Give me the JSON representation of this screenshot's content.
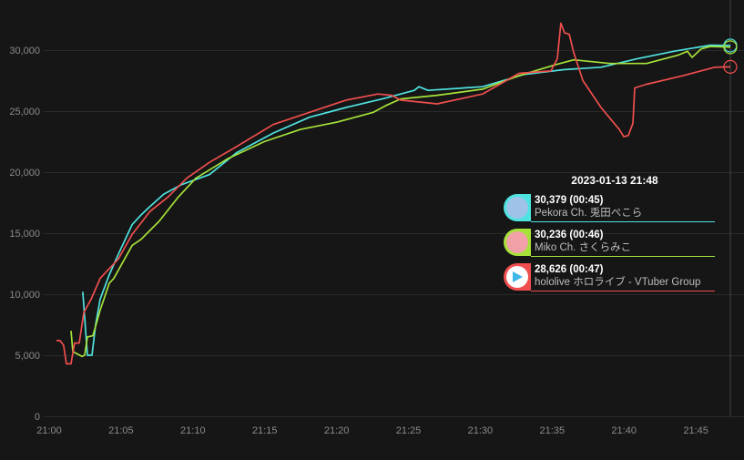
{
  "chart_data": {
    "type": "line",
    "title": "",
    "xlabel": "",
    "ylabel": "",
    "x_unit": "minutes after 21:00",
    "xlim": [
      0,
      48
    ],
    "ylim": [
      0,
      30000
    ],
    "grid": true,
    "y_ticks": [
      0,
      5000,
      10000,
      15000,
      20000,
      25000,
      30000
    ],
    "y_tick_labels": [
      "0",
      "5,000",
      "10,000",
      "15,000",
      "20,000",
      "25,000",
      "30,000"
    ],
    "x_ticks": [
      0,
      5,
      10,
      15,
      20,
      25,
      30,
      35,
      40,
      45
    ],
    "x_tick_labels": [
      "21:00",
      "21:05",
      "21:10",
      "21:15",
      "21:20",
      "21:25",
      "21:30",
      "21:35",
      "21:40",
      "21:45"
    ],
    "cursor_x": 47.4,
    "series": [
      {
        "name": "Pekora Ch. 兎田ぺこら",
        "color": "#4fe3e0",
        "x": [
          2.34,
          2.66,
          2.98,
          3.23,
          3.55,
          4.18,
          4.82,
          5.77,
          6.4,
          7.03,
          7.98,
          9.25,
          11.15,
          13.05,
          15.59,
          18.12,
          20.66,
          23.19,
          25.41,
          25.73,
          26.36,
          30.16,
          33.02,
          35.87,
          38.4,
          40.94,
          43.47,
          46.01,
          47.4
        ],
        "y": [
          10200,
          5000,
          5000,
          7500,
          9600,
          11600,
          13300,
          15700,
          16500,
          17200,
          18200,
          19000,
          19800,
          21600,
          23200,
          24500,
          25300,
          26000,
          26700,
          27000,
          26700,
          27000,
          28000,
          28400,
          28600,
          29300,
          29900,
          30400,
          30379
        ]
      },
      {
        "name": "Miko Ch. さくらみこ",
        "color": "#a6e23a",
        "x": [
          1.52,
          1.65,
          2.28,
          2.47,
          2.66,
          3.04,
          3.55,
          4.18,
          4.5,
          5.77,
          6.4,
          7.67,
          8.94,
          10.2,
          12.42,
          14.96,
          17.49,
          20.03,
          22.56,
          23.51,
          24.46,
          27.0,
          30.16,
          32.7,
          35.23,
          36.5,
          39.04,
          41.57,
          43.79,
          44.42,
          44.74,
          45.37,
          46.01,
          47.4
        ],
        "y": [
          7000,
          5300,
          4900,
          5000,
          6500,
          6600,
          8700,
          10900,
          11300,
          14000,
          14500,
          16000,
          17900,
          19500,
          21100,
          22500,
          23500,
          24100,
          24900,
          25500,
          26000,
          26300,
          26800,
          27900,
          28800,
          29200,
          28900,
          28900,
          29600,
          29900,
          29400,
          30100,
          30300,
          30236
        ]
      },
      {
        "name": "hololive ホロライブ - VTuber Group",
        "color": "#f04e4e",
        "x": [
          0.51,
          0.76,
          1.01,
          1.2,
          1.52,
          1.77,
          2.09,
          2.41,
          2.92,
          3.55,
          4.82,
          5.77,
          7.03,
          8.3,
          9.57,
          11.15,
          13.05,
          15.59,
          18.12,
          20.66,
          22.88,
          23.83,
          24.46,
          27.0,
          30.16,
          32.7,
          34.92,
          35.36,
          35.61,
          35.87,
          36.19,
          36.5,
          37.14,
          38.4,
          39.67,
          39.99,
          40.3,
          40.62,
          40.75,
          41.57,
          44.11,
          46.32,
          47.4
        ],
        "y": [
          6200,
          6200,
          5800,
          4300,
          4300,
          6000,
          6000,
          8500,
          9600,
          11300,
          12900,
          14900,
          16800,
          18000,
          19500,
          20800,
          22100,
          23900,
          24900,
          25900,
          26400,
          26300,
          25900,
          25600,
          26400,
          28100,
          28300,
          29300,
          32200,
          31400,
          31300,
          29800,
          27500,
          25300,
          23500,
          22900,
          23000,
          24000,
          26900,
          27200,
          27900,
          28600,
          28626
        ]
      }
    ]
  },
  "tooltip": {
    "title": "2023-01-13 21:48",
    "rows": [
      {
        "value": "30,379",
        "ago": "(00:45)",
        "name": "Pekora Ch. 兎田ぺこら",
        "color": "#4fe3e0",
        "avatar": "pekora-avatar"
      },
      {
        "value": "30,236",
        "ago": "(00:46)",
        "name": "Miko Ch. さくらみこ",
        "color": "#a6e23a",
        "avatar": "miko-avatar"
      },
      {
        "value": "28,626",
        "ago": "(00:47)",
        "name": "hololive ホロライブ - VTuber Group",
        "color": "#f04e4e",
        "avatar": "hololive-play-logo"
      }
    ]
  }
}
